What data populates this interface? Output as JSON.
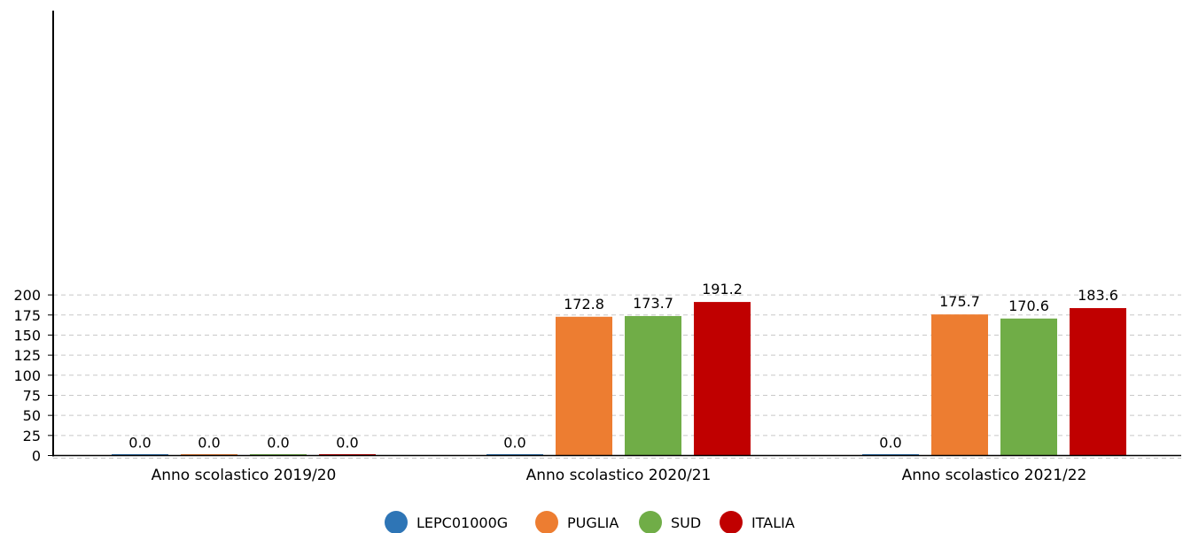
{
  "chart_data": {
    "type": "bar",
    "title": "",
    "xlabel": "",
    "ylabel": "",
    "ylim": [
      0,
      225
    ],
    "y_ticks": [
      0,
      25,
      50,
      75,
      100,
      125,
      150,
      175,
      200
    ],
    "grid": true,
    "legend_position": "bottom",
    "categories": [
      "Anno scolastico 2019/20",
      "Anno scolastico 2020/21",
      "Anno scolastico 2021/22"
    ],
    "series": [
      {
        "name": "LEPC01000G",
        "color": "#2e75b6",
        "values": [
          0.0,
          0.0,
          0.0
        ],
        "labels": [
          "0.0",
          "0.0",
          "0.0"
        ]
      },
      {
        "name": "PUGLIA",
        "color": "#ed7d31",
        "values": [
          0.0,
          172.8,
          175.7
        ],
        "labels": [
          "0.0",
          "172.8",
          "175.7"
        ]
      },
      {
        "name": "SUD",
        "color": "#70ad47",
        "values": [
          0.0,
          173.7,
          170.6
        ],
        "labels": [
          "0.0",
          "173.7",
          "170.6"
        ]
      },
      {
        "name": "ITALIA",
        "color": "#c00000",
        "values": [
          0.0,
          191.2,
          183.6
        ],
        "labels": [
          "0.0",
          "191.2",
          "183.6"
        ]
      }
    ]
  }
}
